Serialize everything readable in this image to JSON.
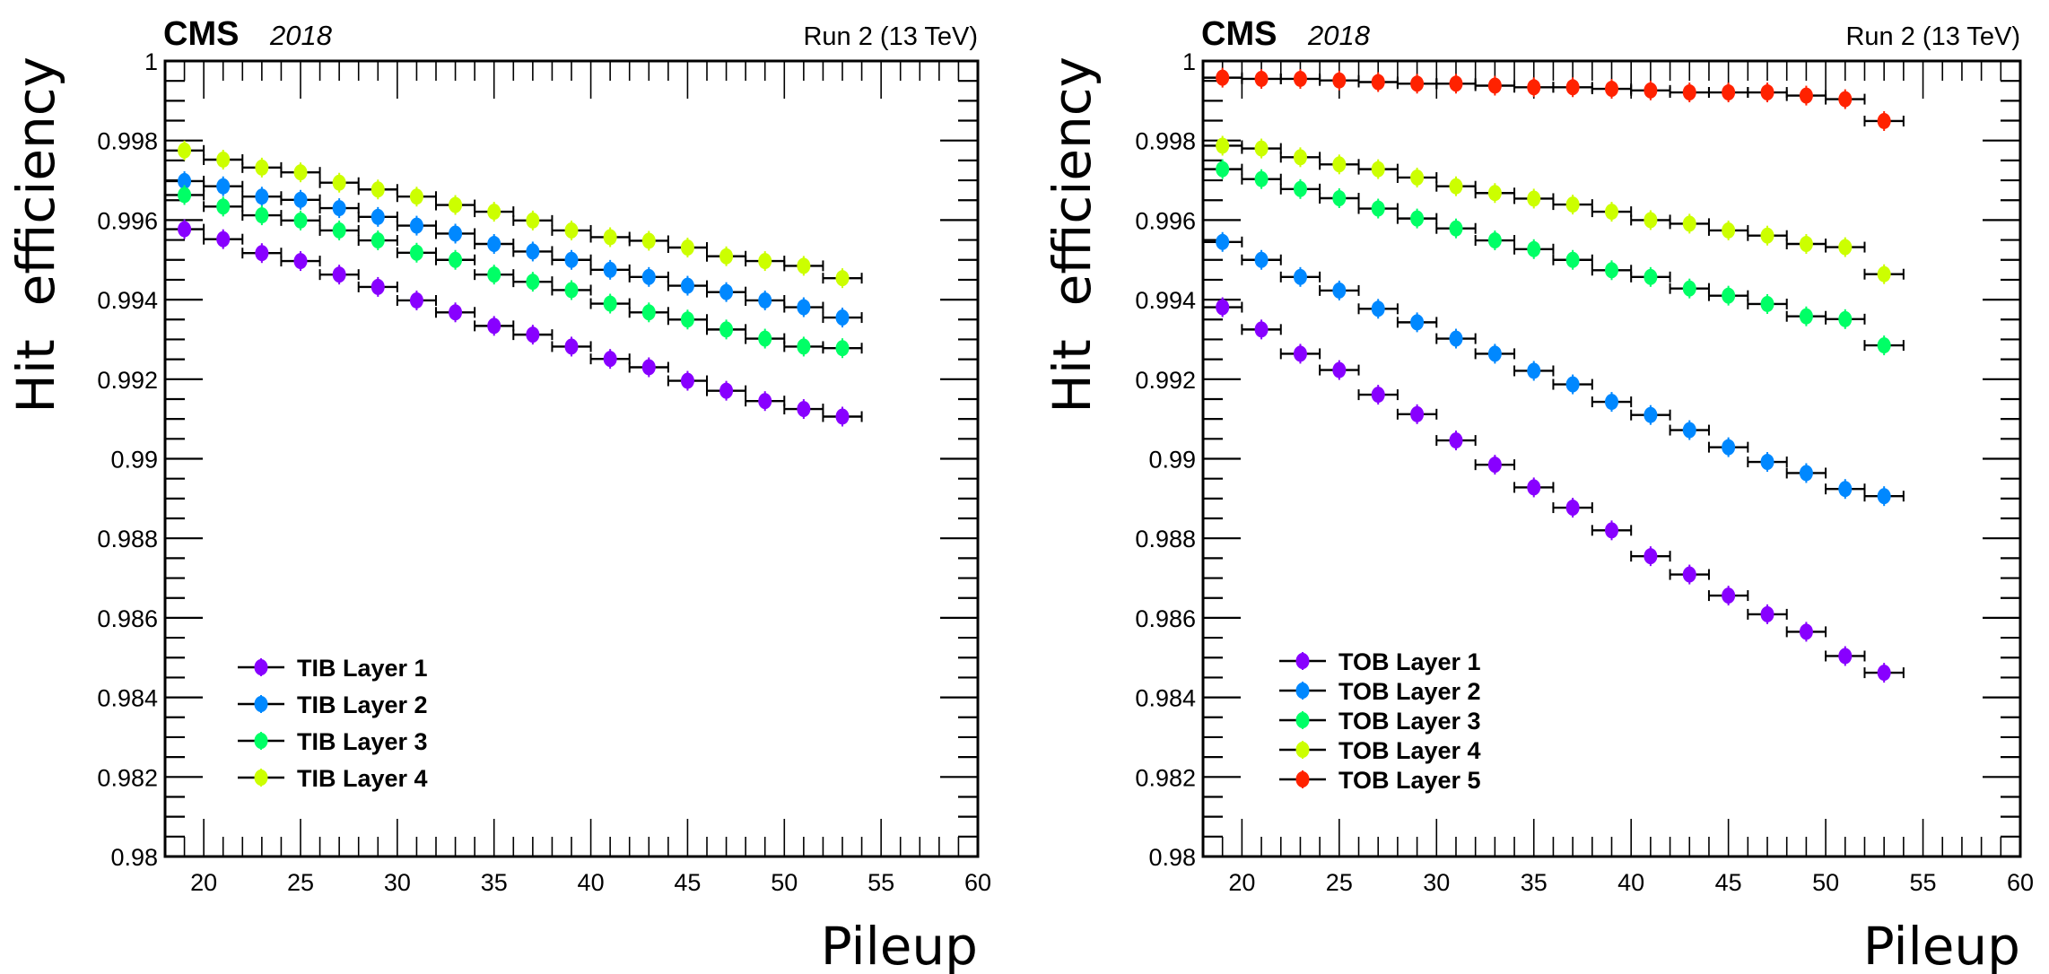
{
  "chart_data": [
    {
      "type": "scatter",
      "experiment_label": "CMS",
      "year_label": "2018",
      "energy_label": "Run 2 (13 TeV)",
      "xlabel": "Pileup",
      "ylabel": "Hit  efficiency",
      "xlim": [
        18,
        60
      ],
      "ylim": [
        0.98,
        1.0
      ],
      "xticks": [
        20,
        25,
        30,
        35,
        40,
        45,
        50,
        55,
        60
      ],
      "yticks": [
        0.98,
        0.982,
        0.984,
        0.986,
        0.988,
        0.99,
        0.992,
        0.994,
        0.996,
        0.998,
        1
      ],
      "ytick_labels": [
        "0.98",
        "0.982",
        "0.984",
        "0.986",
        "0.988",
        "0.99",
        "0.992",
        "0.994",
        "0.996",
        "0.998",
        "1"
      ],
      "xtick_labels": [
        "20",
        "25",
        "30",
        "35",
        "40",
        "45",
        "50",
        "55",
        "60"
      ],
      "grid": false,
      "legend_position": "bottom-left",
      "x_error": 1,
      "x": [
        19,
        21,
        23,
        25,
        27,
        29,
        31,
        33,
        35,
        37,
        39,
        41,
        43,
        45,
        47,
        49,
        51,
        53
      ],
      "series": [
        {
          "name": "TIB Layer 1",
          "color": "#8800ff",
          "values": [
            0.99577,
            0.99552,
            0.99517,
            0.99497,
            0.99463,
            0.99432,
            0.99398,
            0.99368,
            0.99334,
            0.99312,
            0.99282,
            0.99251,
            0.9923,
            0.99196,
            0.99171,
            0.99145,
            0.99125,
            0.99106
          ]
        },
        {
          "name": "TIB Layer 2",
          "color": "#0088ff",
          "values": [
            0.99698,
            0.99685,
            0.99659,
            0.99651,
            0.9963,
            0.99608,
            0.99586,
            0.99566,
            0.9954,
            0.99521,
            0.995,
            0.99475,
            0.99457,
            0.99435,
            0.99419,
            0.99398,
            0.99381,
            0.99355
          ]
        },
        {
          "name": "TIB Layer 3",
          "color": "#00ff66",
          "values": [
            0.99663,
            0.99634,
            0.99612,
            0.99599,
            0.99574,
            0.99549,
            0.99518,
            0.995,
            0.99463,
            0.99445,
            0.99424,
            0.9939,
            0.99368,
            0.9935,
            0.99325,
            0.99302,
            0.99282,
            0.99278
          ]
        },
        {
          "name": "TIB Layer 4",
          "color": "#ccff00",
          "values": [
            0.99775,
            0.99752,
            0.99732,
            0.9972,
            0.99694,
            0.99677,
            0.99659,
            0.99638,
            0.99621,
            0.99599,
            0.99574,
            0.99557,
            0.99548,
            0.99531,
            0.99509,
            0.99497,
            0.99485,
            0.99454
          ]
        }
      ]
    },
    {
      "type": "scatter",
      "experiment_label": "CMS",
      "year_label": "2018",
      "energy_label": "Run 2 (13 TeV)",
      "xlabel": "Pileup",
      "ylabel": "Hit  efficiency",
      "xlim": [
        18,
        60
      ],
      "ylim": [
        0.98,
        1.0
      ],
      "xticks": [
        20,
        25,
        30,
        35,
        40,
        45,
        50,
        55,
        60
      ],
      "yticks": [
        0.98,
        0.982,
        0.984,
        0.986,
        0.988,
        0.99,
        0.992,
        0.994,
        0.996,
        0.998,
        1
      ],
      "ytick_labels": [
        "0.98",
        "0.982",
        "0.984",
        "0.986",
        "0.988",
        "0.99",
        "0.992",
        "0.994",
        "0.996",
        "0.998",
        "1"
      ],
      "xtick_labels": [
        "20",
        "25",
        "30",
        "35",
        "40",
        "45",
        "50",
        "55",
        "60"
      ],
      "grid": false,
      "legend_position": "bottom-left",
      "x_error": 1,
      "x": [
        19,
        21,
        23,
        25,
        27,
        29,
        31,
        33,
        35,
        37,
        39,
        41,
        43,
        45,
        47,
        49,
        51,
        53
      ],
      "series": [
        {
          "name": "TOB Layer 1",
          "color": "#8800ff",
          "values": [
            0.99381,
            0.99325,
            0.99264,
            0.99223,
            0.99161,
            0.99112,
            0.99046,
            0.98985,
            0.98928,
            0.98877,
            0.9882,
            0.98755,
            0.98709,
            0.98656,
            0.98609,
            0.98565,
            0.98504,
            0.98462
          ]
        },
        {
          "name": "TOB Layer 2",
          "color": "#0088ff",
          "values": [
            0.99545,
            0.995,
            0.99457,
            0.99423,
            0.99377,
            0.99343,
            0.99302,
            0.99264,
            0.99221,
            0.99187,
            0.99143,
            0.9911,
            0.99072,
            0.99029,
            0.98992,
            0.98964,
            0.98924,
            0.98906
          ]
        },
        {
          "name": "TOB Layer 3",
          "color": "#00ff66",
          "values": [
            0.99728,
            0.99703,
            0.99678,
            0.99655,
            0.99629,
            0.99604,
            0.99579,
            0.99549,
            0.99527,
            0.995,
            0.99474,
            0.99457,
            0.99428,
            0.9941,
            0.99389,
            0.99358,
            0.99351,
            0.99285
          ]
        },
        {
          "name": "TOB Layer 4",
          "color": "#ccff00",
          "values": [
            0.99787,
            0.9978,
            0.99758,
            0.9974,
            0.99728,
            0.99707,
            0.99685,
            0.99668,
            0.99654,
            0.99639,
            0.99621,
            0.996,
            0.99591,
            0.99574,
            0.99561,
            0.9954,
            0.99532,
            0.99464
          ]
        },
        {
          "name": "TOB Layer 5",
          "color": "#ff2200",
          "values": [
            0.99958,
            0.99955,
            0.99955,
            0.99951,
            0.99947,
            0.99943,
            0.99943,
            0.99938,
            0.99934,
            0.99934,
            0.9993,
            0.99926,
            0.99921,
            0.99921,
            0.99921,
            0.99913,
            0.99904,
            0.99849
          ]
        }
      ]
    }
  ]
}
